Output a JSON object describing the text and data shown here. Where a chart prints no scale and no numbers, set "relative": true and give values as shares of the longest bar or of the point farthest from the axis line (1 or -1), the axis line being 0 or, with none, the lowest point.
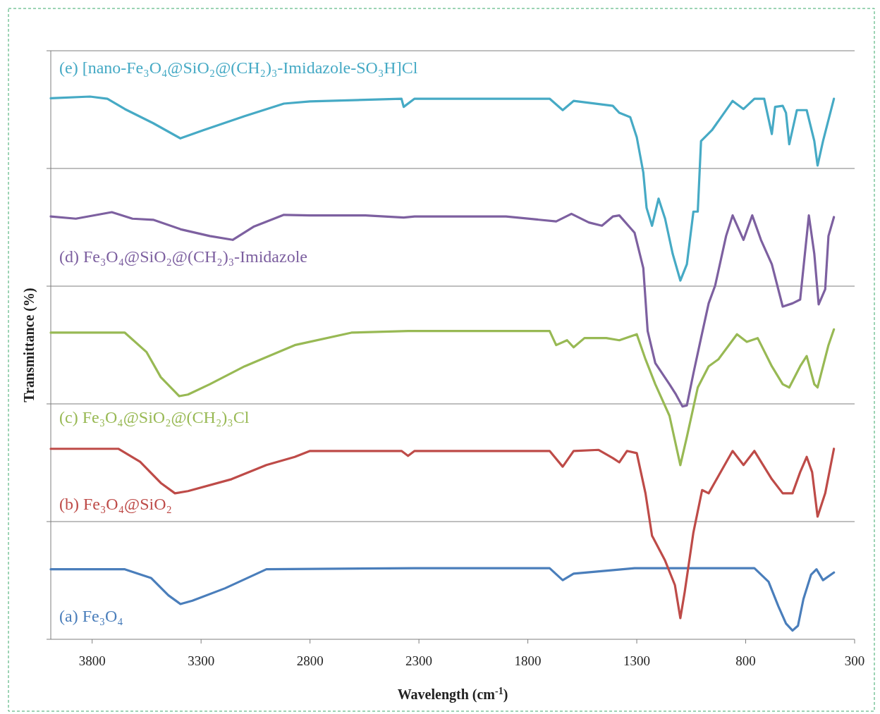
{
  "chart_data": {
    "type": "line",
    "relative": true,
    "xlabel": "Wavelength (cm$^{-1}$)",
    "ylabel": "Transmittance  (%)",
    "xlim": [
      3990,
      300
    ],
    "xticks": [
      3800,
      3300,
      2800,
      2300,
      1800,
      1300,
      800,
      300
    ],
    "grid": "y",
    "marker": "none",
    "line_style": "solid",
    "series": [
      {
        "name": "(a) Fe₃O₄",
        "color": "#4a7ebb",
        "x": [
          3990,
          3650,
          3530,
          3450,
          3395,
          3340,
          3190,
          3000,
          2320,
          1700,
          1640,
          1590,
          1310,
          760,
          695,
          650,
          615,
          585,
          560,
          535,
          500,
          475,
          445,
          395
        ],
        "values": [
          0.129,
          0.129,
          0.113,
          0.081,
          0.065,
          0.071,
          0.094,
          0.129,
          0.131,
          0.131,
          0.109,
          0.121,
          0.131,
          0.131,
          0.106,
          0.061,
          0.029,
          0.016,
          0.025,
          0.074,
          0.119,
          0.129,
          0.109,
          0.123
        ]
      },
      {
        "name": "(b) Fe₃O₄@SiO₂",
        "color": "#be4b48",
        "x": [
          3990,
          3680,
          3580,
          3485,
          3420,
          3360,
          3160,
          3000,
          2870,
          2800,
          2380,
          2350,
          2320,
          1700,
          1640,
          1590,
          1475,
          1410,
          1380,
          1345,
          1300,
          1260,
          1230,
          1170,
          1125,
          1100,
          1080,
          1040,
          1000,
          970,
          925,
          860,
          810,
          760,
          680,
          630,
          585,
          550,
          520,
          495,
          470,
          435,
          395
        ],
        "values": [
          0.351,
          0.351,
          0.327,
          0.288,
          0.269,
          0.273,
          0.295,
          0.321,
          0.336,
          0.347,
          0.347,
          0.338,
          0.347,
          0.347,
          0.318,
          0.347,
          0.349,
          0.334,
          0.326,
          0.347,
          0.343,
          0.269,
          0.191,
          0.145,
          0.1,
          0.039,
          0.087,
          0.197,
          0.275,
          0.269,
          0.301,
          0.347,
          0.321,
          0.347,
          0.295,
          0.269,
          0.269,
          0.308,
          0.336,
          0.308,
          0.226,
          0.269,
          0.351
        ]
      },
      {
        "name": "(c) Fe₃O₄@SiO₂@(CH₂)₃Cl",
        "color": "#98b954",
        "x": [
          3990,
          3650,
          3550,
          3485,
          3400,
          3360,
          3260,
          3100,
          2870,
          2610,
          2350,
          1700,
          1670,
          1620,
          1590,
          1540,
          1440,
          1380,
          1300,
          1260,
          1215,
          1150,
          1100,
          1070,
          1020,
          970,
          925,
          840,
          795,
          745,
          680,
          630,
          600,
          550,
          520,
          485,
          470,
          420,
          395
        ],
        "values": [
          0.565,
          0.565,
          0.529,
          0.483,
          0.448,
          0.451,
          0.47,
          0.503,
          0.542,
          0.565,
          0.568,
          0.568,
          0.542,
          0.551,
          0.538,
          0.555,
          0.555,
          0.551,
          0.562,
          0.516,
          0.47,
          0.412,
          0.321,
          0.373,
          0.464,
          0.503,
          0.516,
          0.562,
          0.548,
          0.555,
          0.503,
          0.47,
          0.464,
          0.503,
          0.522,
          0.47,
          0.464,
          0.542,
          0.571
        ]
      },
      {
        "name": "(d) Fe₃O₄@SiO₂@(CH₂)₃-Imidazole",
        "color": "#7d60a0",
        "x": [
          3990,
          3875,
          3710,
          3615,
          3520,
          3390,
          3260,
          3155,
          3060,
          2920,
          2800,
          2545,
          2370,
          2320,
          2120,
          1900,
          1670,
          1600,
          1520,
          1460,
          1410,
          1380,
          1310,
          1270,
          1250,
          1215,
          1150,
          1120,
          1090,
          1070,
          1040,
          1005,
          970,
          940,
          890,
          860,
          810,
          770,
          730,
          680,
          630,
          585,
          550,
          510,
          485,
          465,
          435,
          420,
          395
        ],
        "values": [
          0.779,
          0.775,
          0.787,
          0.775,
          0.773,
          0.755,
          0.743,
          0.736,
          0.76,
          0.782,
          0.781,
          0.781,
          0.777,
          0.779,
          0.779,
          0.779,
          0.77,
          0.784,
          0.768,
          0.762,
          0.779,
          0.781,
          0.749,
          0.684,
          0.568,
          0.509,
          0.47,
          0.451,
          0.429,
          0.431,
          0.49,
          0.555,
          0.619,
          0.652,
          0.743,
          0.781,
          0.736,
          0.781,
          0.736,
          0.691,
          0.613,
          0.619,
          0.626,
          0.781,
          0.71,
          0.617,
          0.645,
          0.743,
          0.778
        ]
      },
      {
        "name": "(e) [nano-Fe₃O₄@SiO₂@(CH₂)₃-Imidazole-SO₃H]Cl",
        "color": "#46aac5",
        "x": [
          3990,
          3810,
          3730,
          3650,
          3520,
          3395,
          3290,
          3100,
          2920,
          2800,
          2380,
          2370,
          2320,
          1700,
          1640,
          1590,
          1410,
          1380,
          1330,
          1300,
          1270,
          1255,
          1230,
          1200,
          1170,
          1135,
          1100,
          1070,
          1040,
          1020,
          1005,
          955,
          860,
          810,
          760,
          715,
          680,
          665,
          630,
          615,
          600,
          565,
          520,
          485,
          470,
          445,
          395
        ],
        "values": [
          0.997,
          1,
          0.996,
          0.977,
          0.951,
          0.923,
          0.938,
          0.964,
          0.987,
          0.991,
          0.996,
          0.981,
          0.996,
          0.996,
          0.975,
          0.992,
          0.983,
          0.97,
          0.962,
          0.925,
          0.86,
          0.795,
          0.762,
          0.812,
          0.775,
          0.71,
          0.661,
          0.691,
          0.788,
          0.788,
          0.918,
          0.938,
          0.992,
          0.977,
          0.996,
          0.996,
          0.931,
          0.981,
          0.983,
          0.97,
          0.912,
          0.975,
          0.975,
          0.918,
          0.873,
          0.918,
          0.996
        ]
      }
    ]
  }
}
